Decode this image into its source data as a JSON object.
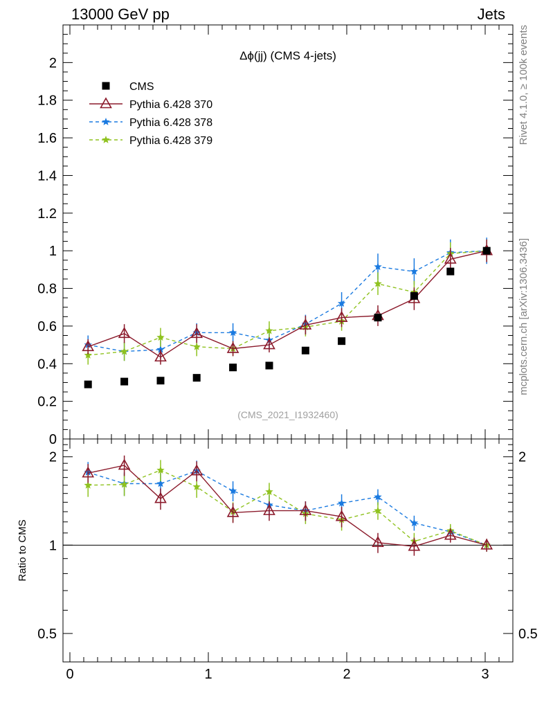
{
  "header": {
    "left": "13000 GeV pp",
    "right": "Jets"
  },
  "side": {
    "rivet": "Rivet 4.1.0, ≥ 100k events",
    "mcplots": "mcplots.cern.ch [arXiv:1306.3436]"
  },
  "chart_data": {
    "type": "scatter",
    "title": "Δϕ(jj) (CMS 4-jets)",
    "analysis_label": "(CMS_2021_I1932460)",
    "xlabel": "",
    "ylabel": "",
    "ratio_ylabel": "Ratio to CMS",
    "xlim": [
      -0.05,
      3.2
    ],
    "ylim": [
      0,
      2.2
    ],
    "ratio_ylim": [
      0.4,
      2.3
    ],
    "x_ticks": [
      "0",
      "1",
      "2",
      "3"
    ],
    "y_ticks": [
      "0",
      "0.2",
      "0.4",
      "0.6",
      "0.8",
      "1",
      "1.2",
      "1.4",
      "1.6",
      "1.8",
      "2"
    ],
    "ratio_ticks": [
      "0.5",
      "1",
      "2"
    ],
    "ratio_ticks_right": [
      "0.5",
      "2"
    ],
    "x": [
      0.131,
      0.393,
      0.655,
      0.916,
      1.178,
      1.44,
      1.702,
      1.963,
      2.225,
      2.487,
      2.749,
      3.011
    ],
    "series": [
      {
        "name": "CMS",
        "color": "#000000",
        "marker": "square",
        "values": [
          0.29,
          0.305,
          0.31,
          0.325,
          0.38,
          0.39,
          0.47,
          0.52,
          0.645,
          0.76,
          0.89,
          1.0
        ],
        "errors": [
          0.01,
          0.01,
          0.01,
          0.01,
          0.01,
          0.01,
          0.01,
          0.01,
          0.012,
          0.015,
          0.015,
          0.01
        ]
      },
      {
        "name": "Pythia 6.428 370",
        "color": "#8b1a2b",
        "marker": "triangle",
        "linestyle": "solid",
        "values": [
          0.49,
          0.56,
          0.435,
          0.56,
          0.48,
          0.5,
          0.605,
          0.645,
          0.655,
          0.745,
          0.955,
          1.0
        ],
        "errors": [
          0.04,
          0.05,
          0.04,
          0.05,
          0.04,
          0.04,
          0.05,
          0.05,
          0.055,
          0.06,
          0.06,
          0.06
        ],
        "ratio": [
          1.76,
          1.87,
          1.44,
          1.79,
          1.29,
          1.31,
          1.31,
          1.25,
          1.02,
          0.99,
          1.08,
          1.0
        ],
        "ratio_errors": [
          0.13,
          0.15,
          0.12,
          0.14,
          0.1,
          0.1,
          0.1,
          0.1,
          0.08,
          0.07,
          0.06,
          0.05
        ]
      },
      {
        "name": "Pythia 6.428 378",
        "color": "#1a7ae0",
        "marker": "star",
        "linestyle": "dashed",
        "values": [
          0.5,
          0.465,
          0.475,
          0.565,
          0.565,
          0.525,
          0.61,
          0.72,
          0.915,
          0.89,
          0.99,
          1.0
        ],
        "errors": [
          0.05,
          0.05,
          0.05,
          0.05,
          0.05,
          0.05,
          0.05,
          0.06,
          0.07,
          0.07,
          0.07,
          0.07
        ],
        "ratio": [
          1.77,
          1.62,
          1.62,
          1.79,
          1.53,
          1.37,
          1.31,
          1.39,
          1.46,
          1.19,
          1.11,
          1.0
        ],
        "ratio_errors": [
          0.15,
          0.15,
          0.14,
          0.15,
          0.12,
          0.11,
          0.1,
          0.1,
          0.09,
          0.07,
          0.06,
          0.05
        ]
      },
      {
        "name": "Pythia 6.428 379",
        "color": "#8fc21f",
        "marker": "star",
        "linestyle": "dashed",
        "values": [
          0.445,
          0.465,
          0.54,
          0.49,
          0.48,
          0.575,
          0.595,
          0.625,
          0.825,
          0.78,
          0.985,
          1.0
        ],
        "errors": [
          0.05,
          0.05,
          0.05,
          0.05,
          0.04,
          0.05,
          0.05,
          0.05,
          0.06,
          0.06,
          0.06,
          0.06
        ],
        "ratio": [
          1.6,
          1.61,
          1.8,
          1.58,
          1.3,
          1.52,
          1.28,
          1.22,
          1.31,
          1.03,
          1.12,
          1.0
        ],
        "ratio_errors": [
          0.14,
          0.14,
          0.15,
          0.13,
          0.1,
          0.11,
          0.1,
          0.1,
          0.09,
          0.07,
          0.06,
          0.05
        ]
      }
    ]
  }
}
